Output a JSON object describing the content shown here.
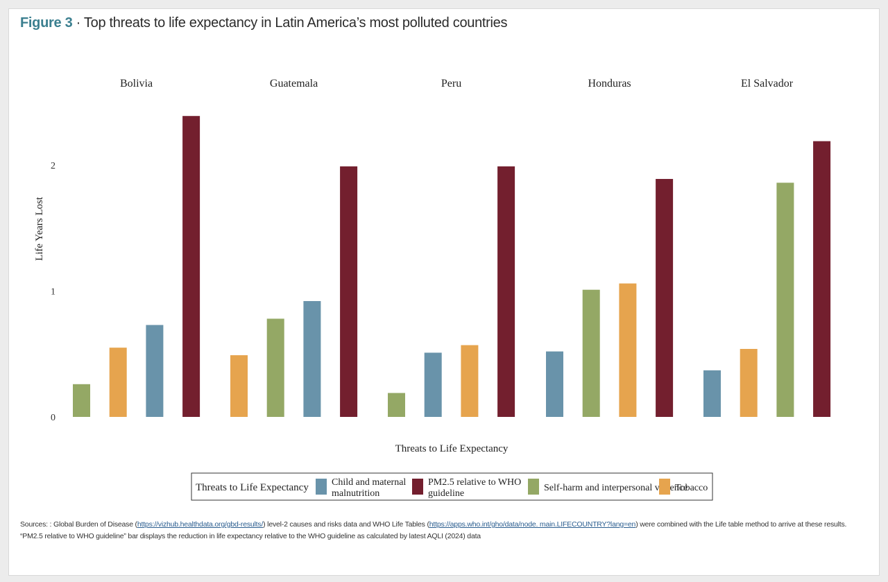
{
  "figure": {
    "number": "Figure 3",
    "separator": " · ",
    "title": "Top threats to life expectancy in Latin America’s most polluted countries"
  },
  "colors": {
    "child": "#6993aa",
    "pm25": "#731f2e",
    "selfharm": "#94a865",
    "tobacco": "#e6a44e",
    "title_accent": "#3b7f8f"
  },
  "chart_data": {
    "type": "bar",
    "facets": [
      "Bolivia",
      "Guatemala",
      "Peru",
      "Honduras",
      "El Salvador"
    ],
    "xlabel": "Threats to Life Expectancy",
    "ylabel": "Life Years Lost",
    "ylim": [
      0,
      2.45
    ],
    "yticks": [
      0,
      1,
      2
    ],
    "legend": {
      "title": "Threats to Life Expectancy",
      "placement": "bottom",
      "items": [
        {
          "key": "child",
          "label": "Child and maternal malnutrition"
        },
        {
          "key": "pm25",
          "label": "PM2.5 relative to WHO guideline"
        },
        {
          "key": "selfharm",
          "label": "Self-harm and interpersonal violence"
        },
        {
          "key": "tobacco",
          "label": "Tobacco"
        }
      ]
    },
    "groups": [
      {
        "country": "Bolivia",
        "bars": [
          {
            "threat": "selfharm",
            "value": 0.26
          },
          {
            "threat": "tobacco",
            "value": 0.55
          },
          {
            "threat": "child",
            "value": 0.73
          },
          {
            "threat": "pm25",
            "value": 2.39
          }
        ]
      },
      {
        "country": "Guatemala",
        "bars": [
          {
            "threat": "tobacco",
            "value": 0.49
          },
          {
            "threat": "selfharm",
            "value": 0.78
          },
          {
            "threat": "child",
            "value": 0.92
          },
          {
            "threat": "pm25",
            "value": 1.99
          }
        ]
      },
      {
        "country": "Peru",
        "bars": [
          {
            "threat": "selfharm",
            "value": 0.19
          },
          {
            "threat": "child",
            "value": 0.51
          },
          {
            "threat": "tobacco",
            "value": 0.57
          },
          {
            "threat": "pm25",
            "value": 1.99
          }
        ]
      },
      {
        "country": "Honduras",
        "bars": [
          {
            "threat": "child",
            "value": 0.52
          },
          {
            "threat": "selfharm",
            "value": 1.01
          },
          {
            "threat": "tobacco",
            "value": 1.06
          },
          {
            "threat": "pm25",
            "value": 1.89
          }
        ]
      },
      {
        "country": "El Salvador",
        "bars": [
          {
            "threat": "child",
            "value": 0.37
          },
          {
            "threat": "tobacco",
            "value": 0.54
          },
          {
            "threat": "selfharm",
            "value": 1.86
          },
          {
            "threat": "pm25",
            "value": 2.19
          }
        ]
      }
    ]
  },
  "sources": {
    "prefix": "Sources: : Global Burden of Disease (",
    "link1": "https://vizhub.healthdata.org/gbd-results/",
    "mid": ") level-2 causes and risks data and WHO Life Tables (",
    "link2": "https://apps.who.int/gho/data/node. main.LIFECOUNTRY?lang=en",
    "suffix": ") were combined with the Life table method to arrive at these results. “PM2.5 relative to WHO guideline” bar displays the reduction in life expectancy relative to the WHO guideline as calculated by latest AQLI (2024) data"
  }
}
